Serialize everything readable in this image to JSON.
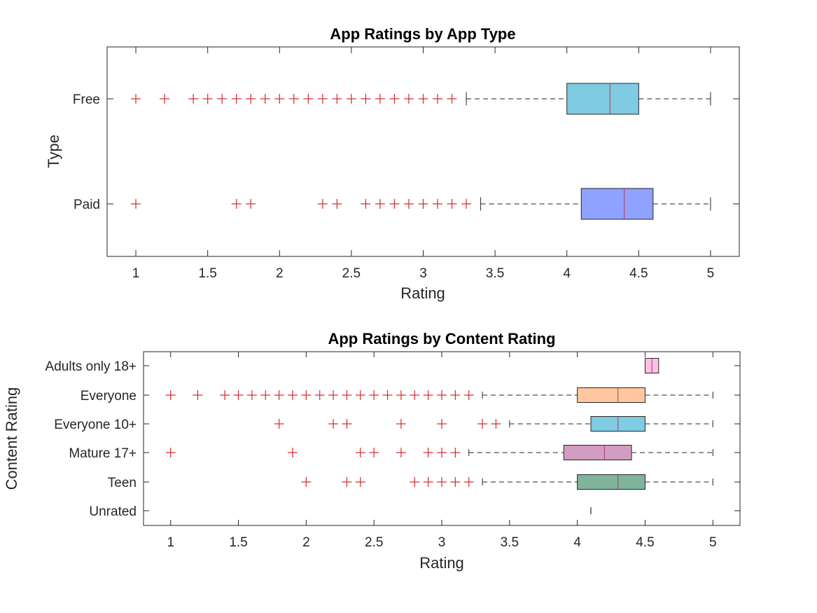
{
  "figure": {
    "background": "#ffffff",
    "axis_color": "#262626",
    "outlier_color": "#d62728",
    "median_color": "#b03a5b",
    "whisker_color": "#262626"
  },
  "chart_data": [
    {
      "type": "boxplot",
      "orientation": "horizontal",
      "title": "App Ratings by App Type",
      "xlabel": "Rating",
      "ylabel": "Type",
      "xlim": [
        0.8,
        5.2
      ],
      "xticks": [
        1,
        1.5,
        2,
        2.5,
        3,
        3.5,
        4,
        4.5,
        5
      ],
      "xtick_labels": [
        "1",
        "1.5",
        "2",
        "2.5",
        "3",
        "3.5",
        "4",
        "4.5",
        "5"
      ],
      "grid": false,
      "categories": [
        "Free",
        "Paid"
      ],
      "boxes": [
        {
          "category": "Free",
          "whisker_low": 3.3,
          "q1": 4.0,
          "median": 4.3,
          "q3": 4.5,
          "whisker_high": 5.0,
          "color": "#7ecbe2",
          "outliers": [
            1.0,
            1.2,
            1.4,
            1.5,
            1.6,
            1.7,
            1.8,
            1.9,
            2.0,
            2.1,
            2.2,
            2.3,
            2.4,
            2.5,
            2.6,
            2.7,
            2.8,
            2.9,
            3.0,
            3.1,
            3.2
          ]
        },
        {
          "category": "Paid",
          "whisker_low": 3.4,
          "q1": 4.1,
          "median": 4.4,
          "q3": 4.6,
          "whisker_high": 5.0,
          "color": "#8fa2ff",
          "outliers": [
            1.0,
            1.7,
            1.8,
            2.3,
            2.4,
            2.6,
            2.7,
            2.8,
            2.9,
            3.0,
            3.1,
            3.2,
            3.3
          ]
        }
      ]
    },
    {
      "type": "boxplot",
      "orientation": "horizontal",
      "title": "App Ratings by Content Rating",
      "xlabel": "Rating",
      "ylabel": "Content Rating",
      "xlim": [
        0.8,
        5.2
      ],
      "xticks": [
        1,
        1.5,
        2,
        2.5,
        3,
        3.5,
        4,
        4.5,
        5
      ],
      "xtick_labels": [
        "1",
        "1.5",
        "2",
        "2.5",
        "3",
        "3.5",
        "4",
        "4.5",
        "5"
      ],
      "grid": false,
      "categories": [
        "Adults only 18+",
        "Everyone",
        "Everyone 10+",
        "Mature 17+",
        "Teen",
        "Unrated"
      ],
      "boxes": [
        {
          "category": "Adults only 18+",
          "whisker_low": 4.5,
          "q1": 4.5,
          "median": 4.55,
          "q3": 4.6,
          "whisker_high": 4.6,
          "color": "#ffc0e6",
          "outliers": []
        },
        {
          "category": "Everyone",
          "whisker_low": 3.3,
          "q1": 4.0,
          "median": 4.3,
          "q3": 4.5,
          "whisker_high": 5.0,
          "color": "#ffc7a0",
          "outliers": [
            1.0,
            1.2,
            1.4,
            1.5,
            1.6,
            1.7,
            1.8,
            1.9,
            2.0,
            2.1,
            2.2,
            2.3,
            2.4,
            2.5,
            2.6,
            2.7,
            2.8,
            2.9,
            3.0,
            3.1,
            3.2
          ]
        },
        {
          "category": "Everyone 10+",
          "whisker_low": 3.5,
          "q1": 4.1,
          "median": 4.3,
          "q3": 4.5,
          "whisker_high": 5.0,
          "color": "#7ecbe2",
          "outliers": [
            1.8,
            2.2,
            2.3,
            2.7,
            3.0,
            3.3,
            3.4
          ]
        },
        {
          "category": "Mature 17+",
          "whisker_low": 3.2,
          "q1": 3.9,
          "median": 4.2,
          "q3": 4.4,
          "whisker_high": 5.0,
          "color": "#d39cc2",
          "outliers": [
            1.0,
            1.9,
            2.4,
            2.5,
            2.7,
            2.9,
            3.0,
            3.1
          ]
        },
        {
          "category": "Teen",
          "whisker_low": 3.3,
          "q1": 4.0,
          "median": 4.3,
          "q3": 4.5,
          "whisker_high": 5.0,
          "color": "#7fb39b",
          "outliers": [
            2.0,
            2.3,
            2.4,
            2.8,
            2.9,
            3.0,
            3.1,
            3.2
          ]
        },
        {
          "category": "Unrated",
          "whisker_low": 4.1,
          "q1": 4.1,
          "median": 4.1,
          "q3": 4.1,
          "whisker_high": 4.1,
          "color": "#ffffff",
          "outliers": []
        }
      ]
    }
  ]
}
